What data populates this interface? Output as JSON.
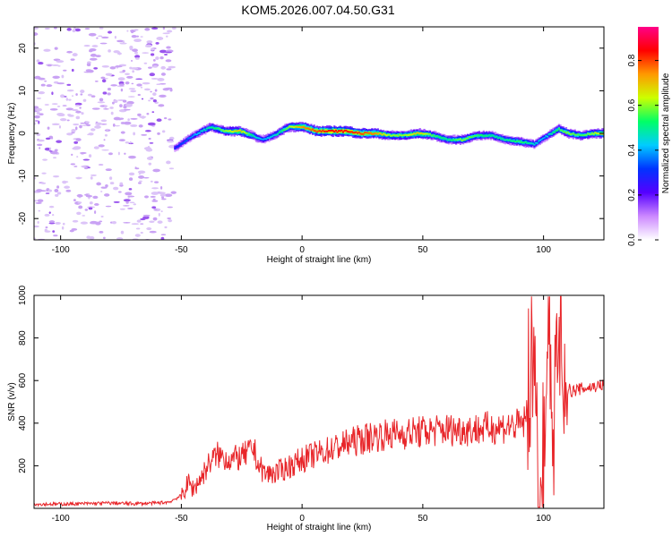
{
  "figure": {
    "title": "KOM5.2026.007.04.50.G31"
  },
  "chart_data": [
    {
      "type": "heatmap",
      "title": "KOM5.2026.007.04.50.G31",
      "xlabel": "Height of straight line (km)",
      "ylabel": "Frequency (Hz)",
      "xlim": [
        -111,
        125
      ],
      "ylim": [
        -25,
        25
      ],
      "x_ticks": [
        -100,
        -50,
        0,
        50,
        100
      ],
      "y_ticks": [
        -20,
        -10,
        0,
        10,
        20
      ],
      "colorbar": {
        "label": "Normalized spectral amplitude",
        "range": [
          0,
          0.95
        ],
        "ticks": [
          0.0,
          0.2,
          0.4,
          0.6,
          0.8
        ],
        "colormap": "rainbow (magenta-blue-cyan-green-yellow-red)",
        "colors": [
          "#ffffff",
          "#cc88ff",
          "#5500ff",
          "#0033ff",
          "#00ccff",
          "#00ff66",
          "#ccff00",
          "#ff9900",
          "#ff0000",
          "#ff0088"
        ]
      },
      "noise_region_x": [
        -111,
        -53
      ],
      "signal_ridge": {
        "x": [
          -53,
          -48,
          -42,
          -38,
          -32,
          -26,
          -21,
          -17,
          -12,
          -6,
          0,
          6,
          12,
          18,
          24,
          30,
          36,
          42,
          48,
          54,
          60,
          66,
          72,
          78,
          84,
          90,
          96,
          100,
          103,
          106,
          110,
          115,
          120,
          125
        ],
        "y_hz": [
          -3.5,
          -1.5,
          0.5,
          1.5,
          0.5,
          0.5,
          -0.5,
          -1.5,
          -0.5,
          1.5,
          1.5,
          0.5,
          0.5,
          0.5,
          0.0,
          0.0,
          -0.5,
          -0.5,
          0.0,
          -0.5,
          -1.5,
          -1.5,
          -0.5,
          -0.5,
          -1.5,
          -2.0,
          -2.5,
          -1.0,
          0.0,
          1.0,
          0.0,
          -0.5,
          0.0,
          0.0
        ],
        "amplitude": [
          0.3,
          0.35,
          0.45,
          0.5,
          0.6,
          0.7,
          0.5,
          0.4,
          0.45,
          0.6,
          0.75,
          0.8,
          0.85,
          0.85,
          0.8,
          0.75,
          0.6,
          0.6,
          0.7,
          0.55,
          0.5,
          0.6,
          0.55,
          0.5,
          0.5,
          0.55,
          0.45,
          0.4,
          0.5,
          0.55,
          0.6,
          0.55,
          0.6,
          0.7
        ]
      }
    },
    {
      "type": "line",
      "xlabel": "Height of straight line (km)",
      "ylabel": "SNR (v/v)",
      "xlim": [
        -111,
        125
      ],
      "ylim": [
        0,
        1000
      ],
      "x_ticks": [
        -100,
        -50,
        0,
        50,
        100
      ],
      "y_ticks": [
        200,
        400,
        600,
        800,
        1000
      ],
      "series": [
        {
          "name": "SNR",
          "color": "#e8262a",
          "x": [
            -111,
            -100,
            -90,
            -80,
            -70,
            -60,
            -55,
            -50,
            -47,
            -45,
            -42,
            -38,
            -35,
            -30,
            -25,
            -20,
            -18,
            -15,
            -10,
            -5,
            0,
            10,
            20,
            30,
            40,
            50,
            60,
            70,
            80,
            90,
            94,
            96,
            98,
            100,
            102,
            104,
            106,
            108,
            110,
            112,
            115,
            120,
            125
          ],
          "y": [
            20,
            20,
            22,
            25,
            22,
            25,
            30,
            60,
            120,
            90,
            140,
            220,
            250,
            230,
            240,
            280,
            200,
            160,
            170,
            200,
            230,
            270,
            310,
            340,
            350,
            360,
            370,
            370,
            380,
            390,
            420,
            700,
            120,
            200,
            940,
            300,
            850,
            500,
            560,
            550,
            560,
            570,
            580
          ]
        }
      ]
    }
  ]
}
